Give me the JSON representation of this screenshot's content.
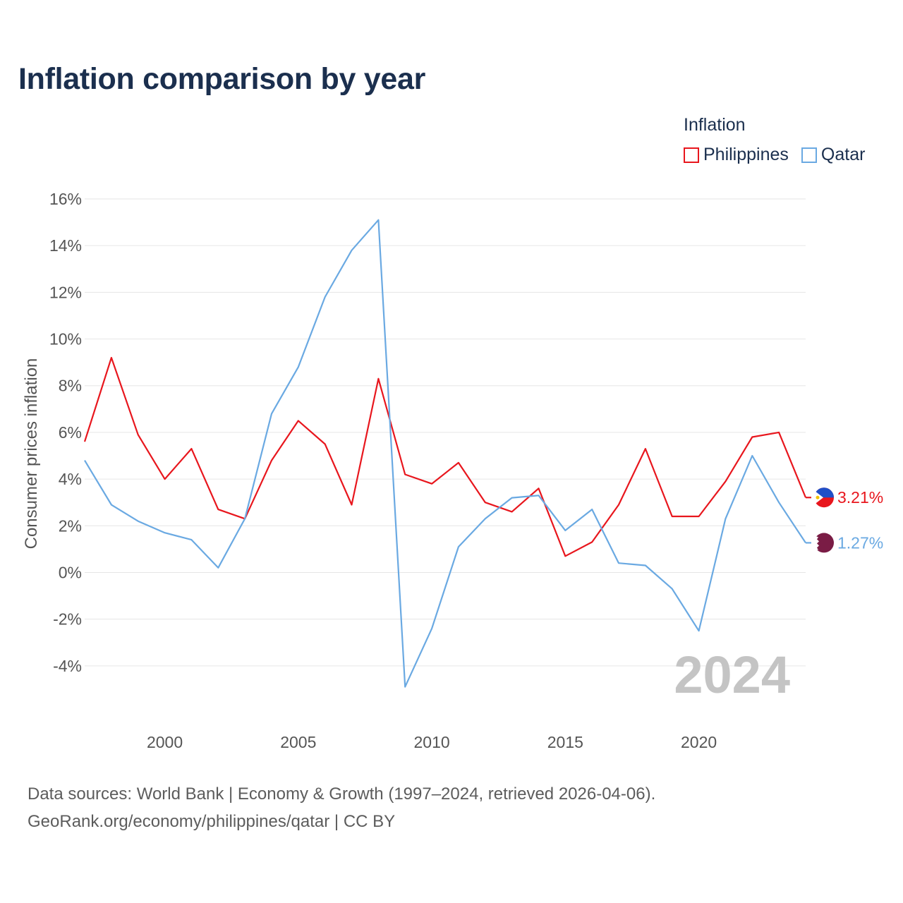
{
  "title": "Inflation comparison by year",
  "legend": {
    "title": "Inflation",
    "items": [
      {
        "label": "Philippines",
        "color": "#e8161d"
      },
      {
        "label": "Qatar",
        "color": "#6aa9e2"
      }
    ]
  },
  "footer": {
    "line1": "Data sources: World Bank | Economy & Growth (1997–2024, retrieved 2026-04-06).",
    "line2": "GeoRank.org/economy/philippines/qatar | CC BY"
  },
  "chart_data": {
    "type": "line",
    "title": "Inflation comparison by year",
    "xlabel": "",
    "ylabel": "Consumer prices inflation",
    "xlim": [
      1997,
      2024
    ],
    "ylim": [
      -6,
      16
    ],
    "x_ticks": [
      2000,
      2005,
      2010,
      2015,
      2020
    ],
    "x_tick_labels": [
      "2000",
      "2005",
      "2010",
      "2015",
      "2020"
    ],
    "y_ticks": [
      16,
      14,
      12,
      10,
      8,
      6,
      4,
      2,
      0,
      -2,
      -4
    ],
    "y_tick_labels": [
      "16%",
      "14%",
      "12%",
      "10%",
      "8%",
      "6%",
      "4%",
      "2%",
      "0%",
      "-2%",
      "-4%"
    ],
    "grid": true,
    "legend_position": "top-right",
    "watermark_year": "2024",
    "x": [
      1997,
      1998,
      1999,
      2000,
      2001,
      2002,
      2003,
      2004,
      2005,
      2006,
      2007,
      2008,
      2009,
      2010,
      2011,
      2012,
      2013,
      2014,
      2015,
      2016,
      2017,
      2018,
      2019,
      2020,
      2021,
      2022,
      2023,
      2024
    ],
    "series": [
      {
        "name": "Philippines",
        "color": "#e8161d",
        "values": [
          5.6,
          9.2,
          5.9,
          4.0,
          5.3,
          2.7,
          2.3,
          4.8,
          6.5,
          5.5,
          2.9,
          8.3,
          4.2,
          3.8,
          4.7,
          3.0,
          2.6,
          3.6,
          0.7,
          1.3,
          2.9,
          5.3,
          2.4,
          2.4,
          3.9,
          5.8,
          6.0,
          3.21
        ],
        "end_label": "3.21%"
      },
      {
        "name": "Qatar",
        "color": "#6aa9e2",
        "values": [
          4.8,
          2.9,
          2.2,
          1.7,
          1.4,
          0.2,
          2.3,
          6.8,
          8.8,
          11.8,
          13.8,
          15.1,
          -4.9,
          -2.4,
          1.1,
          2.3,
          3.2,
          3.3,
          1.8,
          2.7,
          0.4,
          0.3,
          -0.7,
          -2.5,
          2.3,
          5.0,
          3.0,
          1.27
        ],
        "end_label": "1.27%"
      }
    ]
  }
}
